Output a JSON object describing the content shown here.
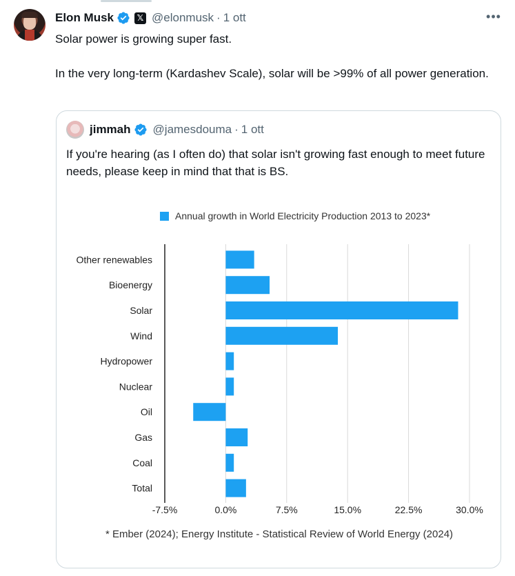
{
  "tweet": {
    "author_name": "Elon Musk",
    "handle": "@elonmusk",
    "time": "1 ott",
    "more": "•••",
    "text_line1": "Solar power is growing super fast.",
    "text_line2": "In the very long-term (Kardashev Scale), solar will be >99% of all power generation."
  },
  "quote": {
    "author_name": "jimmah",
    "handle": "@jamesdouma",
    "time": "1 ott",
    "text": "If you're hearing (as I often do) that solar isn't growing fast enough to meet future needs, please keep in mind that that is BS."
  },
  "colors": {
    "bar": "#1da1f2",
    "verified": "#1d9bf0"
  },
  "chart_data": {
    "type": "bar",
    "orientation": "horizontal",
    "legend": "Annual growth in World Electricity Production 2013 to 2023*",
    "legend_placement": "top",
    "categories": [
      "Other renewables",
      "Bioenergy",
      "Solar",
      "Wind",
      "Hydropower",
      "Nuclear",
      "Oil",
      "Gas",
      "Coal",
      "Total"
    ],
    "values": [
      3.5,
      5.4,
      28.6,
      13.8,
      1.0,
      1.0,
      -4.0,
      2.7,
      1.0,
      2.5
    ],
    "xlim": [
      -7.5,
      30.0
    ],
    "xticks": [
      "-7.5%",
      "0.0%",
      "7.5%",
      "15.0%",
      "22.5%",
      "30.0%"
    ],
    "xtick_values": [
      -7.5,
      0,
      7.5,
      15,
      22.5,
      30
    ],
    "grid": "vertical",
    "footnote": "* Ember (2024); Energy Institute - Statistical Review of World Energy (2024)"
  }
}
